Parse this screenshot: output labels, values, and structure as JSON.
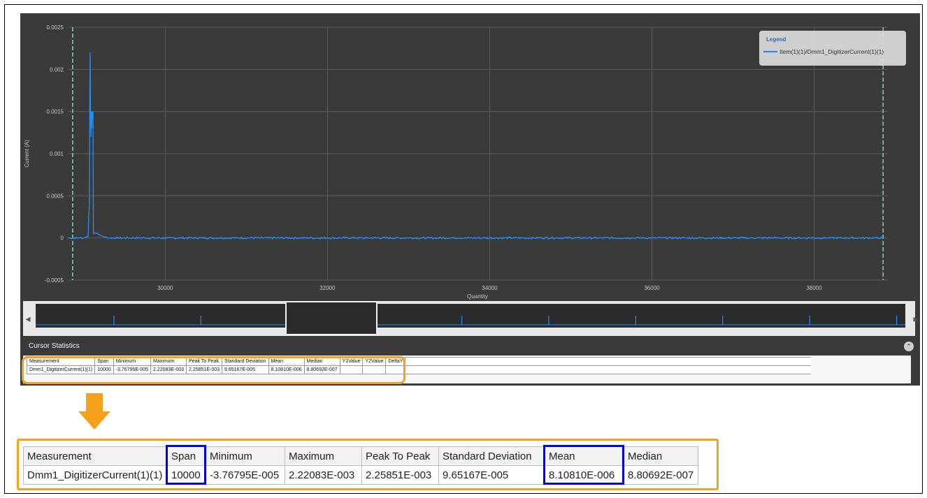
{
  "chart_data": {
    "type": "line",
    "ylabel": "Current (A)",
    "xlabel": "Quantity",
    "ylim": [
      -0.0005,
      0.0025
    ],
    "xlim": [
      28800,
      38900
    ],
    "x_ticks": [
      "30000",
      "32000",
      "34000",
      "36000",
      "38000"
    ],
    "y_ticks": [
      "0.0025",
      "0.002",
      "0.0015",
      "0.001",
      "0.0005",
      "0",
      "-0.0005"
    ],
    "x_tick_values": [
      30000,
      32000,
      34000,
      36000,
      38000
    ],
    "y_tick_values": [
      0.0025,
      0.002,
      0.0015,
      0.001,
      0.0005,
      0,
      -0.0005
    ],
    "grid": true,
    "cursors_x": [
      28860,
      38850
    ],
    "legend_title": "Legend",
    "legend_position": "top-right",
    "series": [
      {
        "name": "Item(1)(1)/Dmm1_DigitizerCurrent(1)(1)",
        "color": "#1e90ff",
        "points": [
          [
            28800,
            0.0
          ],
          [
            29000,
            0.0
          ],
          [
            29050,
            2e-05
          ],
          [
            29060,
            0.0003
          ],
          [
            29065,
            0.0004
          ],
          [
            29070,
            0.0014
          ],
          [
            29075,
            0.0022
          ],
          [
            29080,
            0.0015
          ],
          [
            29085,
            0.0012
          ],
          [
            29090,
            0.0015
          ],
          [
            29095,
            0.0013
          ],
          [
            29100,
            0.0015
          ],
          [
            29105,
            0.0014
          ],
          [
            29110,
            0.0015
          ],
          [
            29115,
            5e-05
          ],
          [
            29150,
            6e-05
          ],
          [
            29200,
            3e-05
          ],
          [
            29300,
            0.0
          ],
          [
            30000,
            0.0
          ],
          [
            32000,
            0.0
          ],
          [
            34000,
            0.0
          ],
          [
            36000,
            0.0
          ],
          [
            38000,
            0.0
          ],
          [
            38850,
            0.0
          ]
        ]
      }
    ]
  },
  "stats": {
    "title": "Cursor Statistics",
    "collapse_icon": "chevron-up-icon",
    "headers": [
      "Measurement",
      "Span",
      "Minimum",
      "Maximum",
      "Peak To Peak",
      "Standard Deviation",
      "Mean",
      "Median",
      "Y1Value",
      "Y2Value",
      "DeltaY"
    ],
    "row": [
      "Dmm1_DigitizerCurrent(1)(1)",
      "10000",
      "-3.76795E-005",
      "2.22083E-003",
      "2.25851E-003",
      "9.65167E-005",
      "8.10810E-006",
      "8.80692E-007",
      "",
      "",
      ""
    ]
  },
  "navigator": {
    "left_icon": "chevron-left-icon",
    "right_icon": "chevron-right-icon",
    "window_start": 0.29,
    "window_end": 0.39,
    "spike_positions": [
      0.09,
      0.19,
      0.29,
      0.39,
      0.49,
      0.59,
      0.69,
      0.79,
      0.89,
      0.99
    ]
  },
  "highlights": {
    "orange": "#f4a11e",
    "blue": "#0000e6",
    "highlighted_columns": [
      "Span",
      "Mean"
    ]
  }
}
